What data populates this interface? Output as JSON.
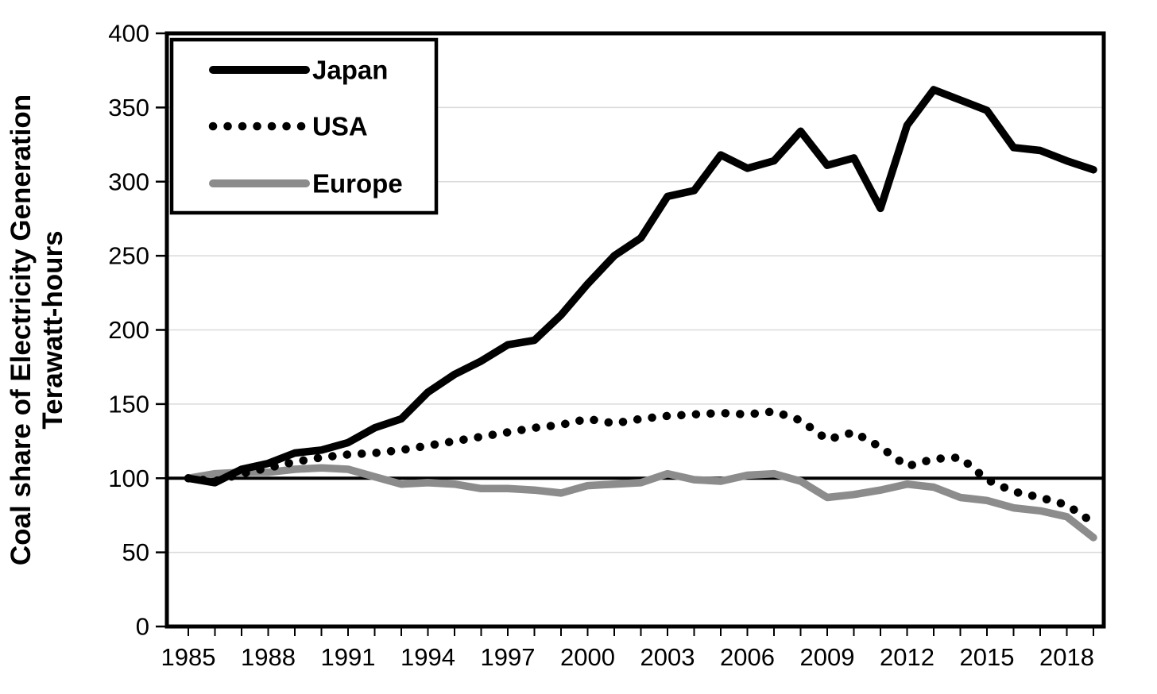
{
  "page": {
    "kind": "statistical line chart",
    "background_color": "#ffffff"
  },
  "chart_data": {
    "type": "line",
    "title": "",
    "ylabel_line1": "Coal share of Electricity Generation",
    "ylabel_line2": "Terawatt-hours",
    "xlabel": "",
    "ylim": [
      0,
      400
    ],
    "y_tick_step": 50,
    "y_tick_labels": [
      "0",
      "50",
      "100",
      "150",
      "200",
      "250",
      "300",
      "350",
      "400"
    ],
    "x_tick_labels": [
      "1985",
      "1988",
      "1991",
      "1994",
      "1997",
      "2000",
      "2003",
      "2006",
      "2009",
      "2012",
      "2015",
      "2018"
    ],
    "baseline_value": 100,
    "grid": true,
    "legend_position": "top-left",
    "x": [
      1985,
      1986,
      1987,
      1988,
      1989,
      1990,
      1991,
      1992,
      1993,
      1994,
      1995,
      1996,
      1997,
      1998,
      1999,
      2000,
      2001,
      2002,
      2003,
      2004,
      2005,
      2006,
      2007,
      2008,
      2009,
      2010,
      2011,
      2012,
      2013,
      2014,
      2015,
      2016,
      2017,
      2018,
      2019
    ],
    "series": [
      {
        "name": "Japan",
        "color": "#000000",
        "line_style": "solid",
        "values": [
          100,
          97,
          106,
          110,
          117,
          119,
          124,
          134,
          140,
          158,
          170,
          179,
          190,
          193,
          210,
          231,
          250,
          262,
          290,
          294,
          318,
          309,
          314,
          334,
          311,
          316,
          282,
          338,
          362,
          355,
          348,
          323,
          321,
          314,
          308
        ]
      },
      {
        "name": "USA",
        "color": "#000000",
        "line_style": "dotted",
        "values": [
          100,
          98,
          103,
          107,
          111,
          114,
          116,
          117,
          119,
          122,
          125,
          128,
          131,
          134,
          136,
          140,
          137,
          140,
          142,
          143,
          144,
          143,
          145,
          139,
          126,
          131,
          121,
          108,
          113,
          114,
          99,
          91,
          87,
          82,
          70
        ]
      },
      {
        "name": "Europe",
        "color": "#8c8c8c",
        "line_style": "solid",
        "values": [
          100,
          103,
          104,
          104,
          106,
          107,
          106,
          101,
          96,
          97,
          96,
          93,
          93,
          92,
          90,
          95,
          96,
          97,
          103,
          99,
          98,
          102,
          103,
          98,
          87,
          89,
          92,
          96,
          94,
          87,
          85,
          80,
          78,
          74,
          60
        ]
      }
    ],
    "colors": {
      "frame": "#000000",
      "baseline": "#000000",
      "gridline": "#d9d9d9",
      "legend_border": "#000000",
      "legend_fill": "#ffffff"
    }
  }
}
